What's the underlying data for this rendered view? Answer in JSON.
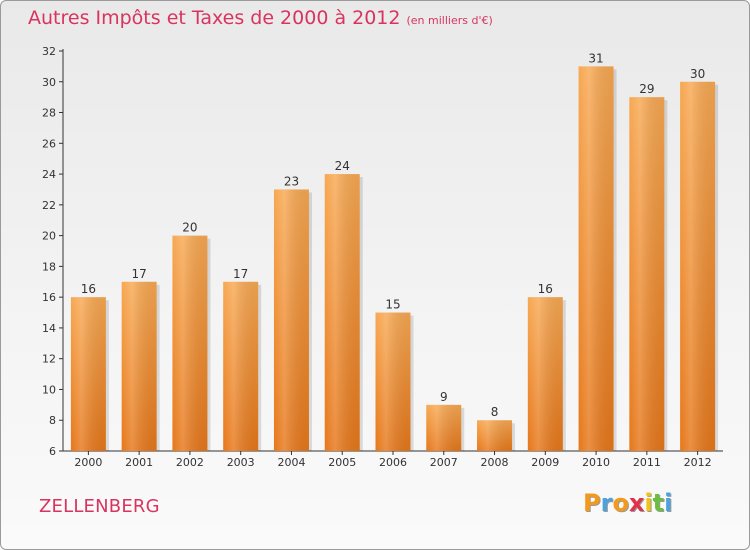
{
  "title": "Autres Impôts et Taxes de 2000 à 2012",
  "subtitle": "(en milliers d'€)",
  "city": "ZELLENBERG",
  "logo": {
    "letters": [
      "P",
      "r",
      "o",
      "x",
      "i",
      "t",
      "i"
    ],
    "colors": [
      "#f39a1c",
      "#4aa3df",
      "#f39a1c",
      "#e2324a",
      "#f2c314",
      "#6cbf3d",
      "#4aa3df"
    ]
  },
  "colors": {
    "bar": "#f08a2a",
    "title": "#d9345f"
  },
  "chart_data": {
    "type": "bar",
    "categories": [
      "2000",
      "2001",
      "2002",
      "2003",
      "2004",
      "2005",
      "2006",
      "2007",
      "2008",
      "2009",
      "2010",
      "2011",
      "2012"
    ],
    "values": [
      16,
      17,
      20,
      17,
      23,
      24,
      15,
      9,
      8,
      16,
      31,
      29,
      30
    ],
    "ylim": [
      6,
      32
    ],
    "yticks": [
      6,
      8,
      10,
      12,
      14,
      16,
      18,
      20,
      22,
      24,
      26,
      28,
      30,
      32
    ],
    "grid": false,
    "title": "Autres Impôts et Taxes de 2000 à 2012",
    "subtitle": "(en milliers d'€)"
  }
}
